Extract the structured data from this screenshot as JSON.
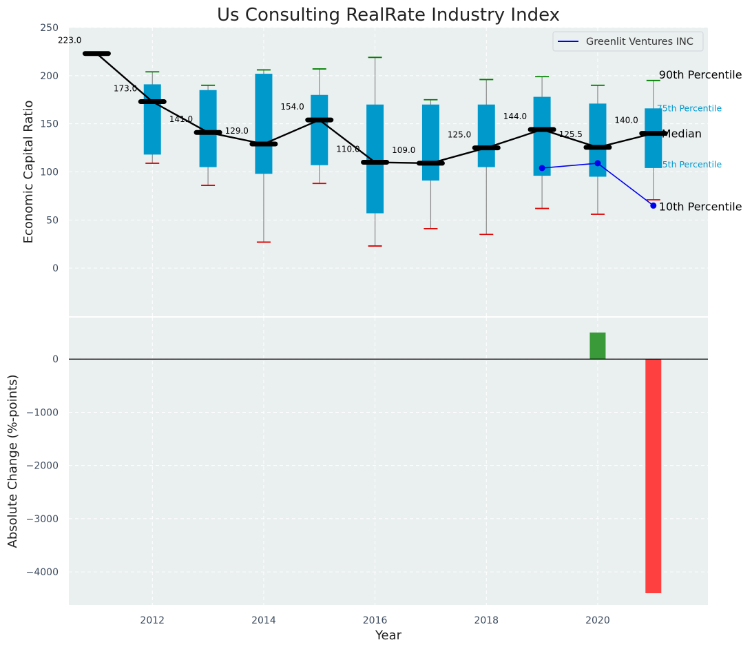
{
  "chart_data": [
    {
      "type": "box",
      "title": "Us Consulting RealRate Industry Index",
      "xlabel": "",
      "ylabel": "Economic Capital Ratio",
      "xlim": [
        2010.5,
        2021.98
      ],
      "ylim": [
        -50,
        250
      ],
      "xticks": [
        "2012",
        "2014",
        "2016",
        "2018",
        "2020"
      ],
      "yticks": [
        "0",
        "50",
        "100",
        "150",
        "200",
        "250"
      ],
      "grid": true,
      "legend": {
        "position": "top-right",
        "entries": [
          "Greenlit Ventures INC"
        ]
      },
      "years": [
        2011,
        2012,
        2013,
        2014,
        2015,
        2016,
        2017,
        2018,
        2019,
        2020,
        2021
      ],
      "median": [
        223.0,
        173.0,
        141.0,
        129.0,
        154.0,
        110.0,
        109.0,
        125.0,
        144.0,
        125.5,
        140.0
      ],
      "median_labels": [
        "223.0",
        "173.0",
        "141.0",
        "129.0",
        "154.0",
        "110.0",
        "109.0",
        "125.0",
        "144.0",
        "125.5",
        "140.0"
      ],
      "p25": [
        null,
        118,
        105,
        98,
        107,
        57,
        91,
        105,
        96,
        95,
        104
      ],
      "p75": [
        null,
        191,
        185,
        202,
        180,
        170,
        170,
        170,
        178,
        171,
        166
      ],
      "p10": [
        null,
        109,
        86,
        27,
        88,
        23,
        41,
        35,
        62,
        56,
        71
      ],
      "p90": [
        null,
        204,
        190,
        206,
        207,
        219,
        175,
        196,
        199,
        190,
        195
      ],
      "company": {
        "name": "Greenlit Ventures INC",
        "x": [
          2019,
          2020,
          2021
        ],
        "values": [
          104,
          109,
          65
        ],
        "color": "#0000ee"
      },
      "percentile_labels": {
        "p90": "90th Percentile",
        "p75": "75th Percentile",
        "median": "Median",
        "p25": "25th Percentile",
        "p10": "10th Percentile"
      },
      "colors": {
        "box": "#0099cc",
        "median_line": "#000000",
        "p90_cap": "#008000",
        "p10_cap": "#dd0000",
        "background": "#eaeff0"
      }
    },
    {
      "type": "bar",
      "title": "",
      "xlabel": "Year",
      "ylabel": "Absolute Change (%-points)",
      "xlim": [
        2010.5,
        2021.98
      ],
      "ylim": [
        -4620,
        780
      ],
      "xticks": [
        "2012",
        "2014",
        "2016",
        "2018",
        "2020"
      ],
      "yticks": [
        "0",
        "−1000",
        "−2000",
        "−3000",
        "−4000"
      ],
      "grid": true,
      "x": [
        2020,
        2021
      ],
      "values": [
        500,
        -4400
      ],
      "colors": {
        "positive": "#3a9a3a",
        "negative": "#ff4040"
      }
    }
  ]
}
